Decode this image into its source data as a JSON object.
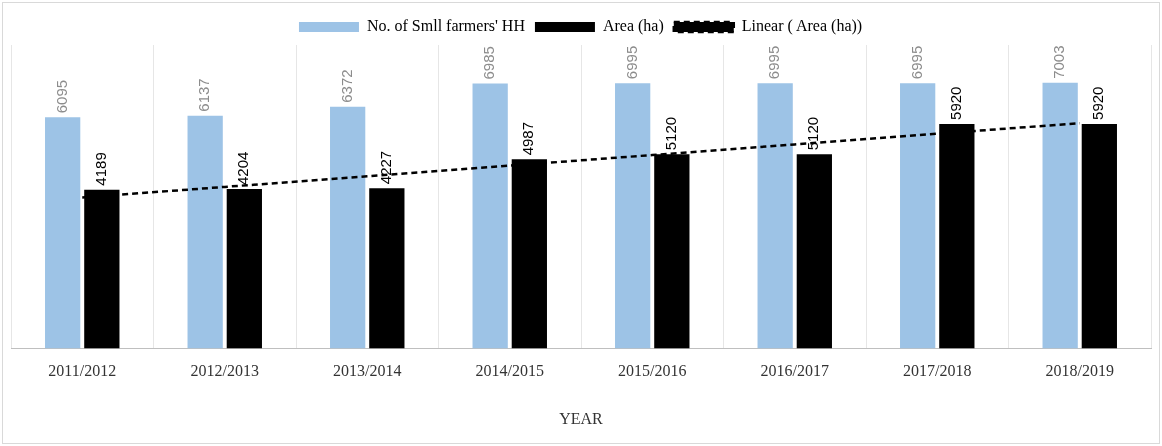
{
  "chart_data": {
    "type": "bar",
    "xlabel": "YEAR",
    "categories": [
      "2011/2012",
      "2012/2013",
      "2013/2014",
      "2014/2015",
      "2015/2016",
      "2016/2017",
      "2017/2018",
      "2018/2019"
    ],
    "series": [
      {
        "name": "No. of Smll farmers' HH",
        "color": "#9dc3e6",
        "values": [
          6095,
          6137,
          6372,
          6985,
          6995,
          6995,
          6995,
          7003
        ],
        "value_labels": [
          "6095",
          "6137",
          "6372",
          "6985",
          "6995",
          "6995",
          "6995",
          "7003"
        ]
      },
      {
        "name": "Area (ha)",
        "color": "#000000",
        "values": [
          4189,
          4204,
          4227,
          4987,
          5120,
          5120,
          5920,
          5920
        ],
        "value_labels": [
          "4189",
          "4204",
          "4227",
          "4987",
          "5120",
          "5120",
          "5920",
          "5920"
        ]
      },
      {
        "name": "Linear ( Area (ha))",
        "type": "line",
        "line_style": "dashed",
        "marker": "none",
        "color": "#000000",
        "values": [
          3981,
          4261,
          4541,
          4821,
          5101,
          5381,
          5661,
          5941
        ]
      }
    ],
    "grid": "x",
    "legend": "top"
  }
}
